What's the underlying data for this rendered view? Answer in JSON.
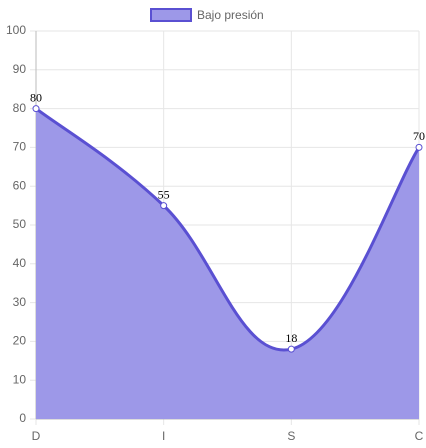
{
  "chart_data": {
    "type": "line",
    "area": true,
    "categories": [
      "D",
      "I",
      "S",
      "C"
    ],
    "series": [
      {
        "name": "Bajo presión",
        "color": "#5a50d2",
        "fill": "#9d98e8",
        "values": [
          80,
          55,
          18,
          70
        ]
      }
    ],
    "ylim": [
      0,
      100
    ],
    "yticks": [
      0,
      10,
      20,
      30,
      40,
      50,
      60,
      70,
      80,
      90,
      100
    ],
    "grid": true,
    "legend": "top",
    "smooth": true
  }
}
